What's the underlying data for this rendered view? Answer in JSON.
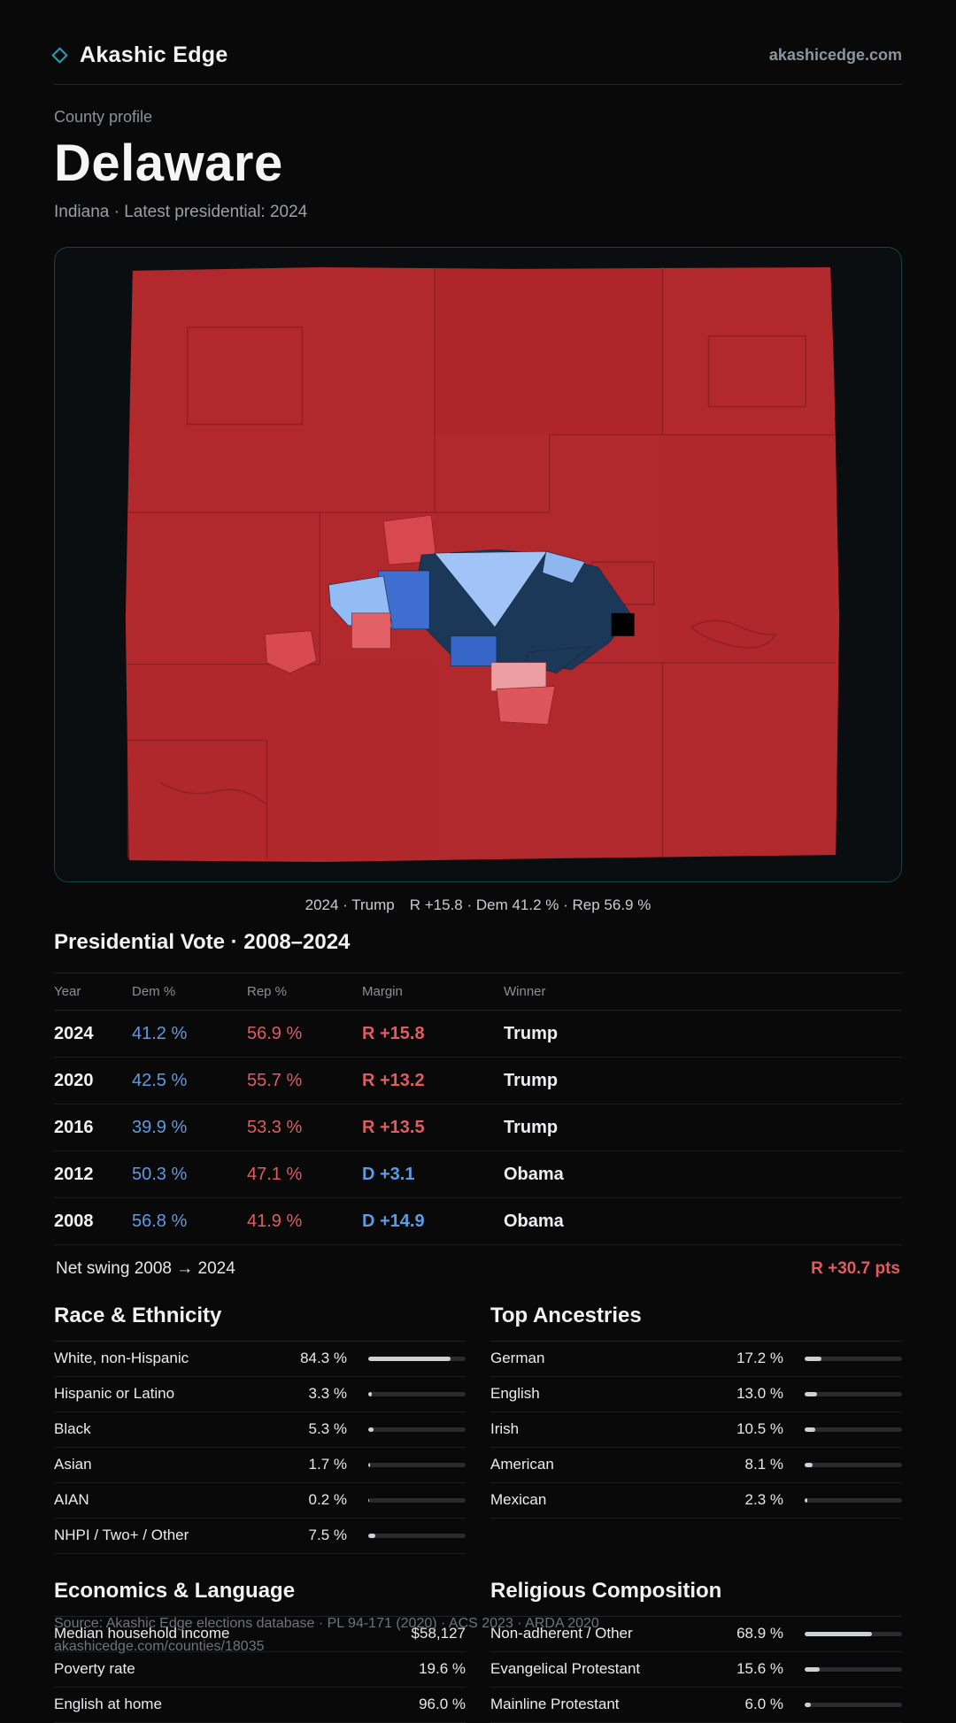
{
  "header": {
    "brand": "Akashic Edge",
    "domain": "akashicedge.com"
  },
  "hero": {
    "kicker": "County profile",
    "title": "Delaware",
    "subtitle": "Indiana · Latest presidential: 2024"
  },
  "map": {
    "caption": "2024 · Trump  R +15.8 · Dem 41.2 % · Rep 56.9 %"
  },
  "vote": {
    "title": "Presidential Vote · 2008–2024",
    "columns": [
      "Year",
      "Dem %",
      "Rep %",
      "Margin",
      "Winner"
    ],
    "rows": [
      {
        "year": "2024",
        "dem": "41.2 %",
        "rep": "56.9 %",
        "margin": "R +15.8",
        "party": "R",
        "winner": "Trump"
      },
      {
        "year": "2020",
        "dem": "42.5 %",
        "rep": "55.7 %",
        "margin": "R +13.2",
        "party": "R",
        "winner": "Trump"
      },
      {
        "year": "2016",
        "dem": "39.9 %",
        "rep": "53.3 %",
        "margin": "R +13.5",
        "party": "R",
        "winner": "Trump"
      },
      {
        "year": "2012",
        "dem": "50.3 %",
        "rep": "47.1 %",
        "margin": "D +3.1",
        "party": "D",
        "winner": "Obama"
      },
      {
        "year": "2008",
        "dem": "56.8 %",
        "rep": "41.9 %",
        "margin": "D +14.9",
        "party": "D",
        "winner": "Obama"
      }
    ],
    "net_swing_label": "Net swing 2008 → 2024",
    "net_swing_value": "R +30.7 pts"
  },
  "race": {
    "title": "Race & Ethnicity",
    "rows": [
      {
        "label": "White, non-Hispanic",
        "value": "84.3 %",
        "pct": 84.3
      },
      {
        "label": "Hispanic or Latino",
        "value": "3.3 %",
        "pct": 3.3
      },
      {
        "label": "Black",
        "value": "5.3 %",
        "pct": 5.3
      },
      {
        "label": "Asian",
        "value": "1.7 %",
        "pct": 1.7
      },
      {
        "label": "AIAN",
        "value": "0.2 %",
        "pct": 0.2
      },
      {
        "label": "NHPI / Two+ / Other",
        "value": "7.5 %",
        "pct": 7.5
      }
    ]
  },
  "ancestries": {
    "title": "Top Ancestries",
    "rows": [
      {
        "label": "German",
        "value": "17.2 %",
        "pct": 17.2
      },
      {
        "label": "English",
        "value": "13.0 %",
        "pct": 13.0
      },
      {
        "label": "Irish",
        "value": "10.5 %",
        "pct": 10.5
      },
      {
        "label": "American",
        "value": "8.1 %",
        "pct": 8.1
      },
      {
        "label": "Mexican",
        "value": "2.3 %",
        "pct": 2.3
      }
    ]
  },
  "economics": {
    "title": "Economics & Language",
    "rows": [
      {
        "label": "Median household income",
        "value": "$58,127"
      },
      {
        "label": "Poverty rate",
        "value": "19.6 %"
      },
      {
        "label": "English at home",
        "value": "96.0 %"
      }
    ]
  },
  "religion": {
    "title": "Religious Composition",
    "rows": [
      {
        "label": "Non-adherent / Other",
        "value": "68.9 %",
        "pct": 68.9
      },
      {
        "label": "Evangelical Protestant",
        "value": "15.6 %",
        "pct": 15.6
      },
      {
        "label": "Mainline Protestant",
        "value": "6.0 %",
        "pct": 6.0
      }
    ]
  },
  "footer": {
    "source": "Source: Akashic Edge elections database · PL 94-171 (2020) · ACS 2023 · ARDA 2020",
    "permalink": "akashicedge.com/counties/18035"
  },
  "colors": {
    "dem": "#5e9be2",
    "rep": "#e25b5f",
    "accent": "#2f9fae",
    "map_red": "#b2292d"
  }
}
